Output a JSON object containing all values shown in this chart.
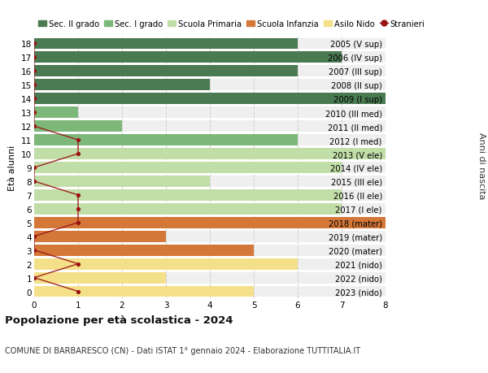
{
  "ages": [
    18,
    17,
    16,
    15,
    14,
    13,
    12,
    11,
    10,
    9,
    8,
    7,
    6,
    5,
    4,
    3,
    2,
    1,
    0
  ],
  "years_labels": [
    "2005 (V sup)",
    "2006 (IV sup)",
    "2007 (III sup)",
    "2008 (II sup)",
    "2009 (I sup)",
    "2010 (III med)",
    "2011 (II med)",
    "2012 (I med)",
    "2013 (V ele)",
    "2014 (IV ele)",
    "2015 (III ele)",
    "2016 (II ele)",
    "2017 (I ele)",
    "2018 (mater)",
    "2019 (mater)",
    "2020 (mater)",
    "2021 (nido)",
    "2022 (nido)",
    "2023 (nido)"
  ],
  "bar_values": [
    6,
    7,
    6,
    4,
    8,
    1,
    2,
    6,
    8,
    7,
    4,
    7,
    7,
    8,
    3,
    5,
    6,
    3,
    5
  ],
  "bar_colors": [
    "#4a7a52",
    "#4a7a52",
    "#4a7a52",
    "#4a7a52",
    "#4a7a52",
    "#7db87a",
    "#7db87a",
    "#7db87a",
    "#c2dea8",
    "#c2dea8",
    "#c2dea8",
    "#c2dea8",
    "#c2dea8",
    "#d4783a",
    "#d4783a",
    "#d4783a",
    "#f5e08a",
    "#f5e08a",
    "#f5e08a"
  ],
  "stranieri_x": [
    0,
    0,
    0,
    0,
    0,
    0,
    0,
    1,
    1,
    0,
    0,
    1,
    1,
    1,
    0,
    0,
    1,
    0,
    1
  ],
  "legend_labels": [
    "Sec. II grado",
    "Sec. I grado",
    "Scuola Primaria",
    "Scuola Infanzia",
    "Asilo Nido",
    "Stranieri"
  ],
  "legend_colors": [
    "#4a7a52",
    "#7db87a",
    "#c2dea8",
    "#d4783a",
    "#f5e08a",
    "#991111"
  ],
  "title": "Popolazione per età scolastica - 2024",
  "subtitle": "COMUNE DI BARBARESCO (CN) - Dati ISTAT 1° gennaio 2024 - Elaborazione TUTTITALIA.IT",
  "ylabel_left": "Età alunni",
  "ylabel_right": "Anni di nascita",
  "xlim": [
    0,
    8
  ],
  "background_color": "#ffffff",
  "bar_bg_color": "#efefef",
  "grid_color": "#d0d0d0",
  "bar_height": 0.82
}
